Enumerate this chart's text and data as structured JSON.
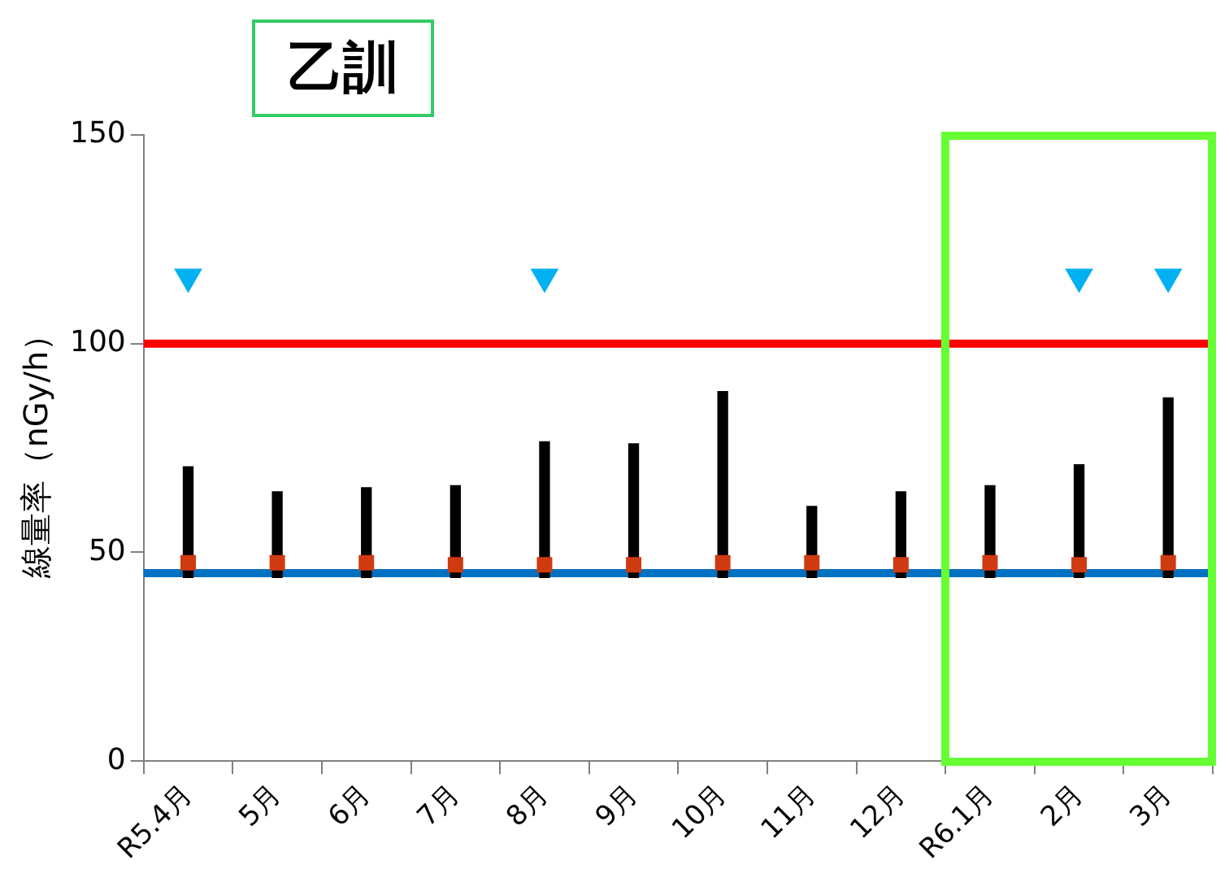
{
  "chart_data": {
    "type": "bar",
    "title": "乙訓",
    "ylabel": "線量率（nGy/h）",
    "categories": [
      "R5.4月",
      "5月",
      "6月",
      "7月",
      "8月",
      "9月",
      "10月",
      "11月",
      "12月",
      "R6.1月",
      "2月",
      "3月"
    ],
    "ylim": [
      0,
      150
    ],
    "yticks": [
      0,
      50,
      100,
      150
    ],
    "grid": false,
    "legend": false,
    "series": [
      {
        "color": "#000000",
        "base": [
          44,
          44,
          44,
          44,
          44,
          44,
          44,
          44,
          44,
          44,
          44,
          44
        ],
        "values": [
          26.5,
          20.5,
          21.5,
          22,
          32.5,
          32,
          44.5,
          17,
          20.5,
          22,
          27,
          43
        ]
      },
      {
        "type": "scatter",
        "color": "#d03a10",
        "marker": "square",
        "values": [
          47.5,
          47.5,
          47.5,
          47,
          47,
          47,
          47.5,
          47.5,
          47,
          47.5,
          47,
          47.5
        ]
      },
      {
        "type": "scatter",
        "color": "#00b0f0",
        "marker": "triangle",
        "values": [
          116,
          null,
          null,
          null,
          116,
          null,
          null,
          null,
          null,
          null,
          116,
          116
        ]
      }
    ],
    "ref_lines": [
      {
        "axis": "y",
        "value": 100,
        "color": "#ff0000"
      },
      {
        "axis": "y",
        "value": 45,
        "color": "#0070c0"
      }
    ]
  }
}
